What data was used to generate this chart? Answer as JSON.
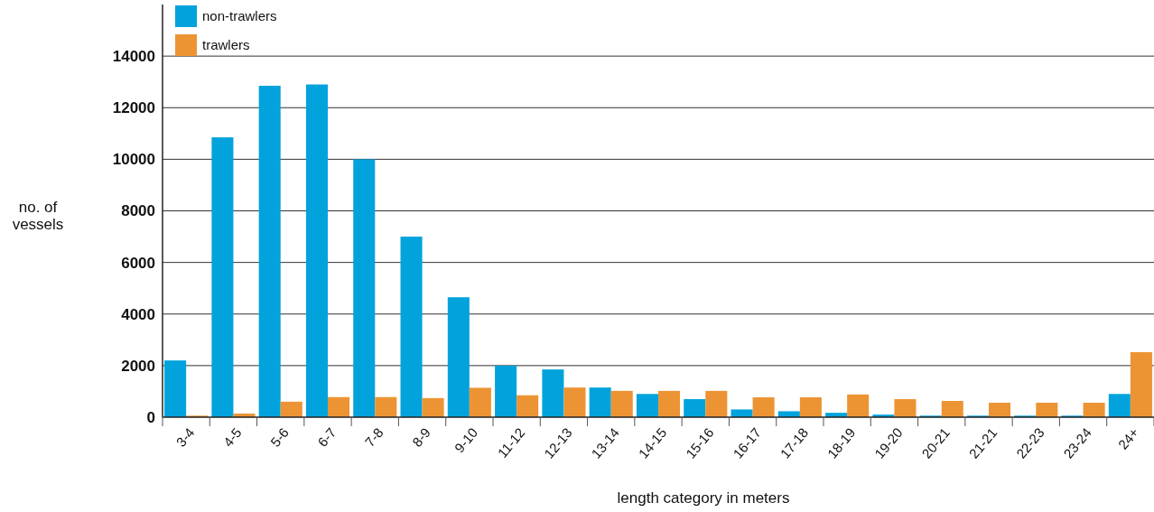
{
  "chart_data": {
    "type": "bar",
    "xlabel": "length category in meters",
    "ylabel": "no. of vessels",
    "categories": [
      "3-4",
      "4-5",
      "5-6",
      "6-7",
      "7-8",
      "8-9",
      "9-10",
      "11-12",
      "12-13",
      "13-14",
      "14-15",
      "15-16",
      "16-17",
      "17-18",
      "18-19",
      "19-20",
      "20-21",
      "21-21",
      "22-23",
      "23-24",
      "24+"
    ],
    "series": [
      {
        "name": "non-trawlers",
        "color": "#02a3dc",
        "values": [
          2200,
          10850,
          12850,
          12900,
          10000,
          7000,
          4650,
          2000,
          1850,
          1150,
          900,
          700,
          300,
          230,
          170,
          100,
          60,
          60,
          60,
          60,
          900
        ]
      },
      {
        "name": "trawlers",
        "color": "#ec9433",
        "values": [
          60,
          140,
          600,
          780,
          780,
          740,
          1140,
          850,
          1150,
          1020,
          1020,
          1020,
          770,
          770,
          880,
          700,
          630,
          560,
          560,
          560,
          2520
        ]
      }
    ],
    "ylim": [
      0,
      16000
    ],
    "yticks": [
      0,
      2000,
      4000,
      6000,
      8000,
      10000,
      12000,
      14000
    ],
    "grid": "y",
    "legend": "top left"
  }
}
